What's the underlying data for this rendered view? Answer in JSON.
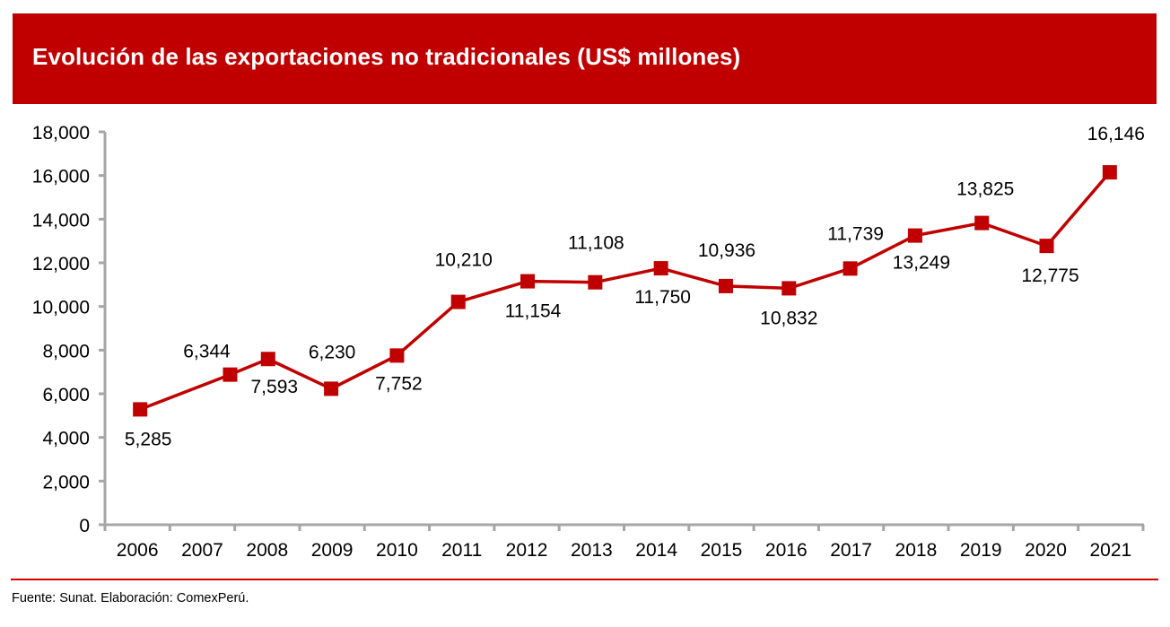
{
  "header": {
    "title": "Evolución de las exportaciones no tradicionales (US$ millones)"
  },
  "footer": {
    "source": "Fuente: Sunat. Elaboración: ComexPerú."
  },
  "colors": {
    "header_background": "#C00000",
    "series": "#C00000",
    "axis": "#A6A6A6",
    "footer_rule": "#D40000"
  },
  "chart_data": {
    "type": "line",
    "title": "Evolución de las exportaciones no tradicionales (US$ millones)",
    "xlabel": "",
    "ylabel": "",
    "categories": [
      "2006",
      "2007",
      "2008",
      "2009",
      "2010",
      "2011",
      "2012",
      "2013",
      "2014",
      "2015",
      "2016",
      "2017",
      "2018",
      "2019",
      "2020",
      "2021"
    ],
    "series": [
      {
        "name": "Exportaciones no tradicionales",
        "marker": "square",
        "values": [
          5285,
          6344,
          7593,
          6230,
          7752,
          10210,
          11154,
          11108,
          11750,
          10936,
          10832,
          11739,
          13249,
          13825,
          12775,
          16146
        ],
        "data_labels": [
          "5,285",
          "6,344",
          "7,593",
          "6,230",
          "7,752",
          "10,210",
          "11,154",
          "11,108",
          "11,750",
          "10,936",
          "10,832",
          "11,739",
          "13,249",
          "13,825",
          "12,775",
          "16,146"
        ]
      }
    ],
    "ylim": [
      0,
      18000
    ],
    "yticks": [
      0,
      2000,
      4000,
      6000,
      8000,
      10000,
      12000,
      14000,
      16000,
      18000
    ],
    "ytick_labels": [
      "0",
      "2,000",
      "4,000",
      "6,000",
      "8,000",
      "10,000",
      "12,000",
      "14,000",
      "16,000",
      "18,000"
    ],
    "grid": false,
    "legend": "none"
  }
}
